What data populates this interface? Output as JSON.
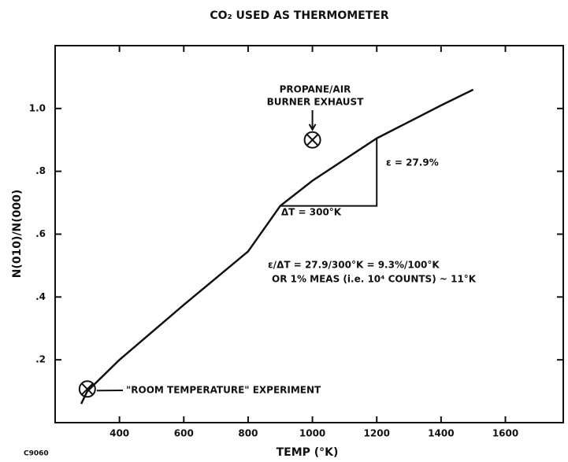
{
  "chart_data": {
    "type": "line",
    "title": "CO₂ USED AS THERMOMETER",
    "x_label": "TEMP (°K)",
    "y_label": "N(010)/N(000)",
    "x": [
      281,
      300,
      400,
      600,
      800,
      900,
      1000,
      1200,
      1400,
      1500
    ],
    "values": [
      0.06,
      0.1,
      0.2,
      0.375,
      0.545,
      0.69,
      0.77,
      0.905,
      1.01,
      1.06
    ],
    "color": "#111111",
    "markers": {
      "x": [
        300,
        1000
      ],
      "values": [
        0.107,
        0.9
      ]
    },
    "triangle": {
      "x": [
        900,
        1200,
        1200
      ],
      "values": [
        0.69,
        0.69,
        0.905
      ]
    },
    "xlim": [
      200,
      1780
    ],
    "ylim": [
      0,
      1.2
    ],
    "xticks": [
      400,
      600,
      800,
      1000,
      1200,
      1400,
      1600
    ],
    "yticks": [
      {
        "value": 0.2,
        "label": ".2"
      },
      {
        "value": 0.4,
        "label": ".4"
      },
      {
        "value": 0.6,
        "label": ".6"
      },
      {
        "value": 0.8,
        "label": ".8"
      },
      {
        "value": 1.0,
        "label": "1.0"
      }
    ],
    "annotations": [
      "PROPANE/AIR",
      "BURNER EXHAUST",
      "ε = 27.9%",
      "ΔT = 300°K",
      "ε/ΔT = 27.9/300°K = 9.3%/100°K",
      "OR 1% MEAS (i.e. 10⁴ COUNTS) ~ 11°K",
      "\"ROOM TEMPERATURE\" EXPERIMENT"
    ],
    "figure_id": "C9060"
  }
}
